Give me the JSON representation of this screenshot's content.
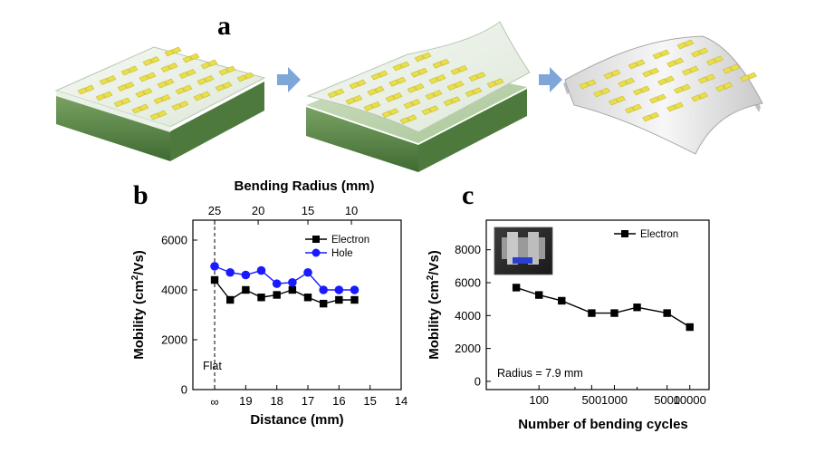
{
  "panels": {
    "a": "a",
    "b": "b",
    "c": "c"
  },
  "illustration": {
    "stages": [
      "device-on-substrate",
      "peeling-off",
      "bent-flexible-device"
    ],
    "colors": {
      "pad": "#e8df4a",
      "film": "#e9efe6",
      "substrate_top": "#9ab88a",
      "substrate_side": "#5f8a4c",
      "arrow": "#7ea6d9"
    }
  },
  "chart_data": [
    {
      "id": "b",
      "type": "line",
      "title": "",
      "xlabel": "Distance (mm)",
      "ylabel_main": "Mobility (cm",
      "ylabel_sup": "2",
      "ylabel_tail": "/Vs)",
      "x_ticks": [
        {
          "value": 19,
          "label": "19"
        },
        {
          "value": 18,
          "label": "18"
        },
        {
          "value": 17,
          "label": "17"
        },
        {
          "value": 16,
          "label": "16"
        },
        {
          "value": 15,
          "label": "15"
        },
        {
          "value": 14,
          "label": "14"
        }
      ],
      "infinity_tick": "∞",
      "xlim": [
        14,
        20.7
      ],
      "x_reversed": true,
      "ylim": [
        0,
        6800
      ],
      "y_ticks": [
        0,
        2000,
        4000,
        6000
      ],
      "top_axis": {
        "title": "Bending Radius (mm)",
        "ticks": [
          {
            "label": "25",
            "at_distance": 20.0
          },
          {
            "label": "20",
            "at_distance": 18.6
          },
          {
            "label": "15",
            "at_distance": 17.0
          },
          {
            "label": "10",
            "at_distance": 15.6
          }
        ]
      },
      "flat_marker": {
        "label": "Flat",
        "at_distance": 20.0
      },
      "legend_position": "top-right",
      "series": [
        {
          "name": "Electron",
          "color": "#000000",
          "marker": "square",
          "x": [
            20.0,
            19.5,
            19.0,
            18.5,
            18.0,
            17.5,
            17.0,
            16.5,
            16.0,
            15.5
          ],
          "values": [
            4400,
            3600,
            4000,
            3700,
            3800,
            4000,
            3700,
            3450,
            3600,
            3600
          ]
        },
        {
          "name": "Hole",
          "color": "#1a1aff",
          "marker": "circle",
          "x": [
            20.0,
            19.5,
            19.0,
            18.5,
            18.0,
            17.5,
            17.0,
            16.5,
            16.0,
            15.5
          ],
          "values": [
            4950,
            4700,
            4600,
            4780,
            4250,
            4300,
            4700,
            4000,
            4000,
            4000
          ]
        }
      ]
    },
    {
      "id": "c",
      "type": "line",
      "title": "",
      "xlabel": "Number of bending cycles",
      "ylabel_main": "Mobility (cm",
      "ylabel_sup": "2",
      "ylabel_tail": "/Vs)",
      "x_scale": "log",
      "xlim": [
        20,
        18000
      ],
      "x_ticks": [
        {
          "value": 100,
          "label": "100"
        },
        {
          "value": 500,
          "label": "500"
        },
        {
          "value": 1000,
          "label": "1000"
        },
        {
          "value": 5000,
          "label": "5000"
        },
        {
          "value": 10000,
          "label": "10000"
        }
      ],
      "x_minor_ticks": [
        300,
        2000
      ],
      "ylim": [
        -500,
        9800
      ],
      "y_ticks": [
        0,
        2000,
        4000,
        6000,
        8000
      ],
      "legend_position": "top-right",
      "annotation": "Radius = 7.9 mm",
      "inset": "photo-of-bending-setup",
      "series": [
        {
          "name": "Electron",
          "color": "#000000",
          "marker": "square",
          "x": [
            50,
            100,
            200,
            500,
            1000,
            2000,
            5000,
            10000
          ],
          "values": [
            5700,
            5250,
            4900,
            4150,
            4150,
            4500,
            4150,
            3300
          ]
        }
      ]
    }
  ]
}
